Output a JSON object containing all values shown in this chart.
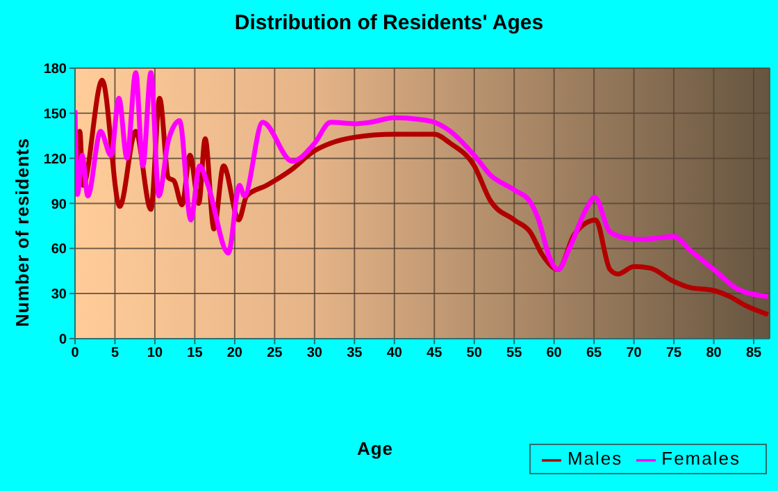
{
  "chart_data": {
    "type": "line",
    "title": "Distribution of Residents' Ages",
    "xlabel": "Age",
    "ylabel": "Number of residents",
    "xlim": [
      0,
      87
    ],
    "xticks": [
      0,
      5,
      10,
      15,
      20,
      25,
      30,
      35,
      40,
      45,
      50,
      55,
      60,
      65,
      70,
      75,
      80,
      85
    ],
    "ylim": [
      0,
      180
    ],
    "yticks": [
      0,
      30,
      60,
      90,
      120,
      150,
      180
    ],
    "grid": true,
    "legend": "bottom right",
    "marker": "none",
    "line_style": "solid",
    "series": [
      {
        "name": "Males",
        "color": "#b20000",
        "x": [
          0,
          0.6,
          1,
          3.4,
          5.6,
          7.6,
          9.5,
          10.6,
          11.7,
          12.4,
          13.4,
          14.4,
          15.5,
          16.3,
          17.4,
          18.6,
          20.5,
          21.5,
          24,
          27,
          30,
          32,
          35,
          40,
          45,
          47,
          50,
          52,
          55,
          57,
          58.5,
          60.5,
          62.5,
          64,
          65.2,
          67,
          68,
          70,
          72,
          75,
          77,
          80,
          82,
          84,
          86.8
        ],
        "values": [
          100,
          138,
          102,
          172,
          88,
          138,
          86,
          160,
          107,
          105,
          89,
          122,
          90,
          133,
          73,
          115,
          79,
          95,
          102,
          112,
          125,
          130,
          134,
          136,
          136,
          130,
          115,
          92,
          79,
          71,
          56,
          46,
          69,
          77,
          79,
          46,
          43,
          48,
          47,
          38,
          34,
          32,
          28,
          22,
          16
        ]
      },
      {
        "name": "Females",
        "color": "#ff00ff",
        "x": [
          0,
          0.3,
          0.9,
          1.6,
          3.2,
          4.5,
          5.5,
          6.5,
          7.6,
          8.5,
          9.5,
          10.5,
          11.7,
          13.1,
          14.5,
          15.6,
          16.6,
          19.2,
          20.6,
          21.2,
          23.5,
          27.2,
          30,
          32,
          35,
          37,
          40,
          43,
          45,
          47,
          50,
          52,
          55,
          57,
          58,
          59.5,
          60.5,
          62,
          64,
          65.1,
          67,
          69,
          71,
          73,
          75,
          77,
          80,
          83,
          86.8
        ],
        "values": [
          152,
          96,
          122,
          95,
          138,
          122,
          160,
          120,
          177,
          115,
          177,
          95,
          132,
          145,
          79,
          115,
          103,
          57,
          102,
          95,
          144,
          118,
          130,
          144,
          143,
          144,
          147,
          146,
          144,
          138,
          122,
          109,
          99,
          91,
          80,
          53,
          46,
          61,
          86,
          94,
          71,
          67,
          66,
          67,
          68,
          59,
          46,
          33,
          28
        ]
      }
    ]
  }
}
